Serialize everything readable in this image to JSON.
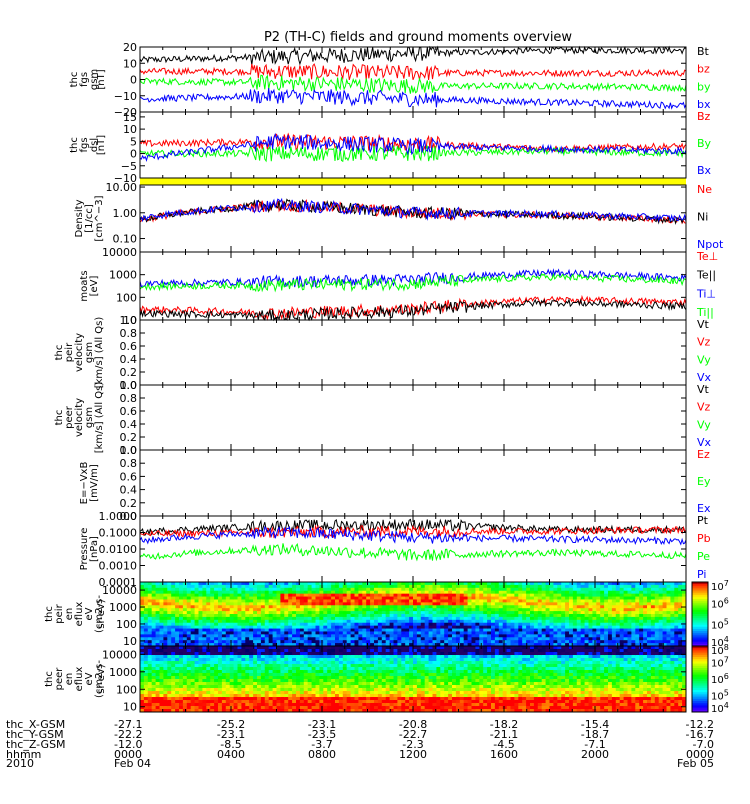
{
  "title": "P2 (TH-C) fields and ground moments overview",
  "colors": {
    "black": "#000000",
    "red": "#ff0000",
    "green": "#00ff00",
    "blue": "#0000ff",
    "yellow": "#ffff00"
  },
  "chart_data": [
    {
      "id": "fgs_gsm",
      "type": "line",
      "ylabel": [
        "thc",
        "fgs",
        "gsm",
        "[nT]"
      ],
      "ylim": [
        -20,
        20
      ],
      "ticks": [
        "20",
        "10",
        "0",
        "−10",
        "−20"
      ],
      "tick_values": [
        20,
        10,
        0,
        -10,
        -20
      ],
      "series": [
        {
          "name": "Bt",
          "color": "#000000",
          "levels": [
            12,
            14,
            16,
            18,
            18
          ]
        },
        {
          "name": "bz",
          "color": "#ff0000",
          "levels": [
            5,
            5,
            4,
            4,
            4
          ]
        },
        {
          "name": "by",
          "color": "#00ff00",
          "levels": [
            -1,
            -2,
            -4,
            -4,
            -5
          ]
        },
        {
          "name": "bx",
          "color": "#0000ff",
          "levels": [
            -12,
            -10,
            -12,
            -14,
            -16
          ]
        }
      ]
    },
    {
      "id": "fgs_dsl",
      "type": "line",
      "ylabel": [
        "thc",
        "fgs",
        "dsl",
        "[nT]"
      ],
      "ylim": [
        -10,
        17
      ],
      "ticks": [
        "15",
        "10",
        "5",
        "0",
        "−5",
        "−10"
      ],
      "tick_values": [
        15,
        10,
        5,
        0,
        -5,
        -10
      ],
      "series": [
        {
          "name": "Bz",
          "color": "#ff0000",
          "levels": [
            4,
            5,
            4,
            2,
            3
          ]
        },
        {
          "name": "By",
          "color": "#00ff00",
          "levels": [
            0,
            0,
            0,
            1,
            0
          ]
        },
        {
          "name": "Bx",
          "color": "#0000ff",
          "levels": [
            -2,
            5,
            3,
            2,
            1
          ]
        }
      ]
    },
    {
      "id": "density",
      "type": "line",
      "scale": "log",
      "ylabel": [
        "Density",
        "[1/cc]",
        "[cm^−3]"
      ],
      "ylim": [
        0.03,
        12
      ],
      "ticks": [
        "10.00",
        "1.00",
        "0.10"
      ],
      "tick_values": [
        10,
        1,
        0.1
      ],
      "series": [
        {
          "name": "Ne",
          "color": "#ff0000",
          "levels": [
            0.5,
            2,
            1,
            0.8,
            0.5
          ]
        },
        {
          "name": "Ni",
          "color": "#000000",
          "levels": [
            0.5,
            2,
            1,
            0.8,
            0.5
          ]
        },
        {
          "name": "Npot",
          "color": "#0000ff",
          "levels": [
            0.6,
            2,
            1,
            0.9,
            0.6
          ]
        }
      ]
    },
    {
      "id": "temperature",
      "type": "line",
      "scale": "log",
      "ylabel": [
        "moats",
        "[eV]"
      ],
      "ylim": [
        10,
        10000
      ],
      "ticks": [
        "10000",
        "1000",
        "100",
        "10"
      ],
      "tick_values": [
        10000,
        1000,
        100,
        10
      ],
      "series": [
        {
          "name": "Te⊥",
          "color": "#ff0000",
          "levels": [
            30,
            20,
            30,
            80,
            60
          ]
        },
        {
          "name": "Te||",
          "color": "#000000",
          "levels": [
            20,
            15,
            25,
            60,
            40
          ]
        },
        {
          "name": "Ti⊥",
          "color": "#0000ff",
          "levels": [
            400,
            500,
            600,
            1200,
            700
          ]
        },
        {
          "name": "Ti||",
          "color": "#00ff00",
          "levels": [
            300,
            350,
            400,
            800,
            500
          ]
        }
      ]
    },
    {
      "id": "peir_velocity",
      "type": "line",
      "ylabel": [
        "thc",
        "peir",
        "velocity",
        "gsm",
        "[km/s] (All Qs)"
      ],
      "ylim": [
        0,
        1
      ],
      "ticks": [
        "1.0",
        "0.8",
        "0.6",
        "0.4",
        "0.2",
        "0.0"
      ],
      "tick_values": [
        1,
        0.8,
        0.6,
        0.4,
        0.2,
        0
      ],
      "series": [
        {
          "name": "Vt",
          "color": "#000000"
        },
        {
          "name": "Vz",
          "color": "#ff0000"
        },
        {
          "name": "Vy",
          "color": "#00ff00"
        },
        {
          "name": "Vx",
          "color": "#0000ff"
        }
      ]
    },
    {
      "id": "peer_velocity",
      "type": "line",
      "ylabel": [
        "thc",
        "peer",
        "velocity",
        "gsm",
        "[km/s] (All Qs)"
      ],
      "ylim": [
        0,
        1
      ],
      "ticks": [
        "1.0",
        "0.8",
        "0.6",
        "0.4",
        "0.2",
        "0.0"
      ],
      "tick_values": [
        1,
        0.8,
        0.6,
        0.4,
        0.2,
        0
      ],
      "series": [
        {
          "name": "Vt",
          "color": "#000000"
        },
        {
          "name": "Vz",
          "color": "#ff0000"
        },
        {
          "name": "Vy",
          "color": "#00ff00"
        },
        {
          "name": "Vx",
          "color": "#0000ff"
        }
      ]
    },
    {
      "id": "efield",
      "type": "line",
      "ylabel": [
        "E=−VxB",
        "[mV/m]"
      ],
      "ylim": [
        0,
        1
      ],
      "ticks": [
        "1.0",
        "0.8",
        "0.6",
        "0.4",
        "0.2",
        "0.0"
      ],
      "tick_values": [
        1,
        0.8,
        0.6,
        0.4,
        0.2,
        0
      ],
      "series": [
        {
          "name": "Ez",
          "color": "#ff0000"
        },
        {
          "name": "Ey",
          "color": "#00ff00"
        },
        {
          "name": "Ex",
          "color": "#0000ff"
        }
      ]
    },
    {
      "id": "pressure",
      "type": "line",
      "scale": "log",
      "ylabel": [
        "Pressure",
        "[nPa]"
      ],
      "ylim": [
        0.0001,
        1
      ],
      "ticks": [
        "1.0000",
        "0.1000",
        "0.0100",
        "0.0010",
        "0.0001"
      ],
      "tick_values": [
        1,
        0.1,
        0.01,
        0.001,
        0.0001
      ],
      "series": [
        {
          "name": "Pt",
          "color": "#000000",
          "levels": [
            0.1,
            0.25,
            0.3,
            0.15,
            0.15
          ]
        },
        {
          "name": "Pb",
          "color": "#ff0000",
          "levels": [
            0.08,
            0.1,
            0.12,
            0.12,
            0.15
          ]
        },
        {
          "name": "Pe",
          "color": "#00ff00",
          "levels": [
            0.003,
            0.01,
            0.004,
            0.006,
            0.004
          ]
        },
        {
          "name": "Pi",
          "color": "#0000ff",
          "levels": [
            0.03,
            0.1,
            0.05,
            0.04,
            0.03
          ]
        }
      ]
    },
    {
      "id": "peir_eflux",
      "type": "heatmap",
      "scale": "log",
      "ylabel": [
        "thc",
        "peir",
        "en",
        "eflux",
        "eV",
        "(cm2-s-",
        "sr-eV)"
      ],
      "ylim": [
        5,
        30000
      ],
      "ticks": [
        "10000",
        "1000",
        "100",
        "10"
      ],
      "tick_values": [
        10000,
        1000,
        100,
        10
      ],
      "colorbar": {
        "min": 4,
        "max": 7,
        "labels": [
          "10^7",
          "10^6",
          "10^5",
          "10^4"
        ],
        "label_values": [
          7,
          6,
          5,
          4
        ]
      }
    },
    {
      "id": "peer_eflux",
      "type": "heatmap",
      "scale": "log",
      "ylabel": [
        "thc",
        "peer",
        "en",
        "eflux",
        "eV",
        "(cm2-s-",
        "sr-eV)"
      ],
      "ylim": [
        5,
        30000
      ],
      "ticks": [
        "10000",
        "1000",
        "100",
        "10"
      ],
      "tick_values": [
        10000,
        1000,
        100,
        10
      ],
      "colorbar": {
        "min": 4,
        "max": 8,
        "labels": [
          "10^8",
          "10^7",
          "10^6",
          "10^5",
          "10^4"
        ],
        "label_values": [
          8,
          7,
          6,
          5,
          4
        ]
      }
    }
  ],
  "xaxis": {
    "row_labels": [
      "thc_X-GSM",
      "thc_Y-GSM",
      "thc_Z-GSM",
      "hhmm",
      "2010"
    ],
    "columns": [
      {
        "x": "-27.1",
        "y": "-22.2",
        "z": "-12.0",
        "hhmm": "0000",
        "date": "Feb 04"
      },
      {
        "x": "-25.2",
        "y": "-23.1",
        "z": "-8.5",
        "hhmm": "0400",
        "date": ""
      },
      {
        "x": "-23.1",
        "y": "-23.5",
        "z": "-3.7",
        "hhmm": "0800",
        "date": ""
      },
      {
        "x": "-20.8",
        "y": "-22.7",
        "z": "-2.3",
        "hhmm": "1200",
        "date": ""
      },
      {
        "x": "-18.2",
        "y": "-21.1",
        "z": "-4.5",
        "hhmm": "1600",
        "date": ""
      },
      {
        "x": "-15.4",
        "y": "-18.7",
        "z": "-7.1",
        "hhmm": "2000",
        "date": ""
      },
      {
        "x": "-12.2",
        "y": "-16.7",
        "z": "-7.0",
        "hhmm": "0000",
        "date": "Feb 05"
      }
    ]
  }
}
